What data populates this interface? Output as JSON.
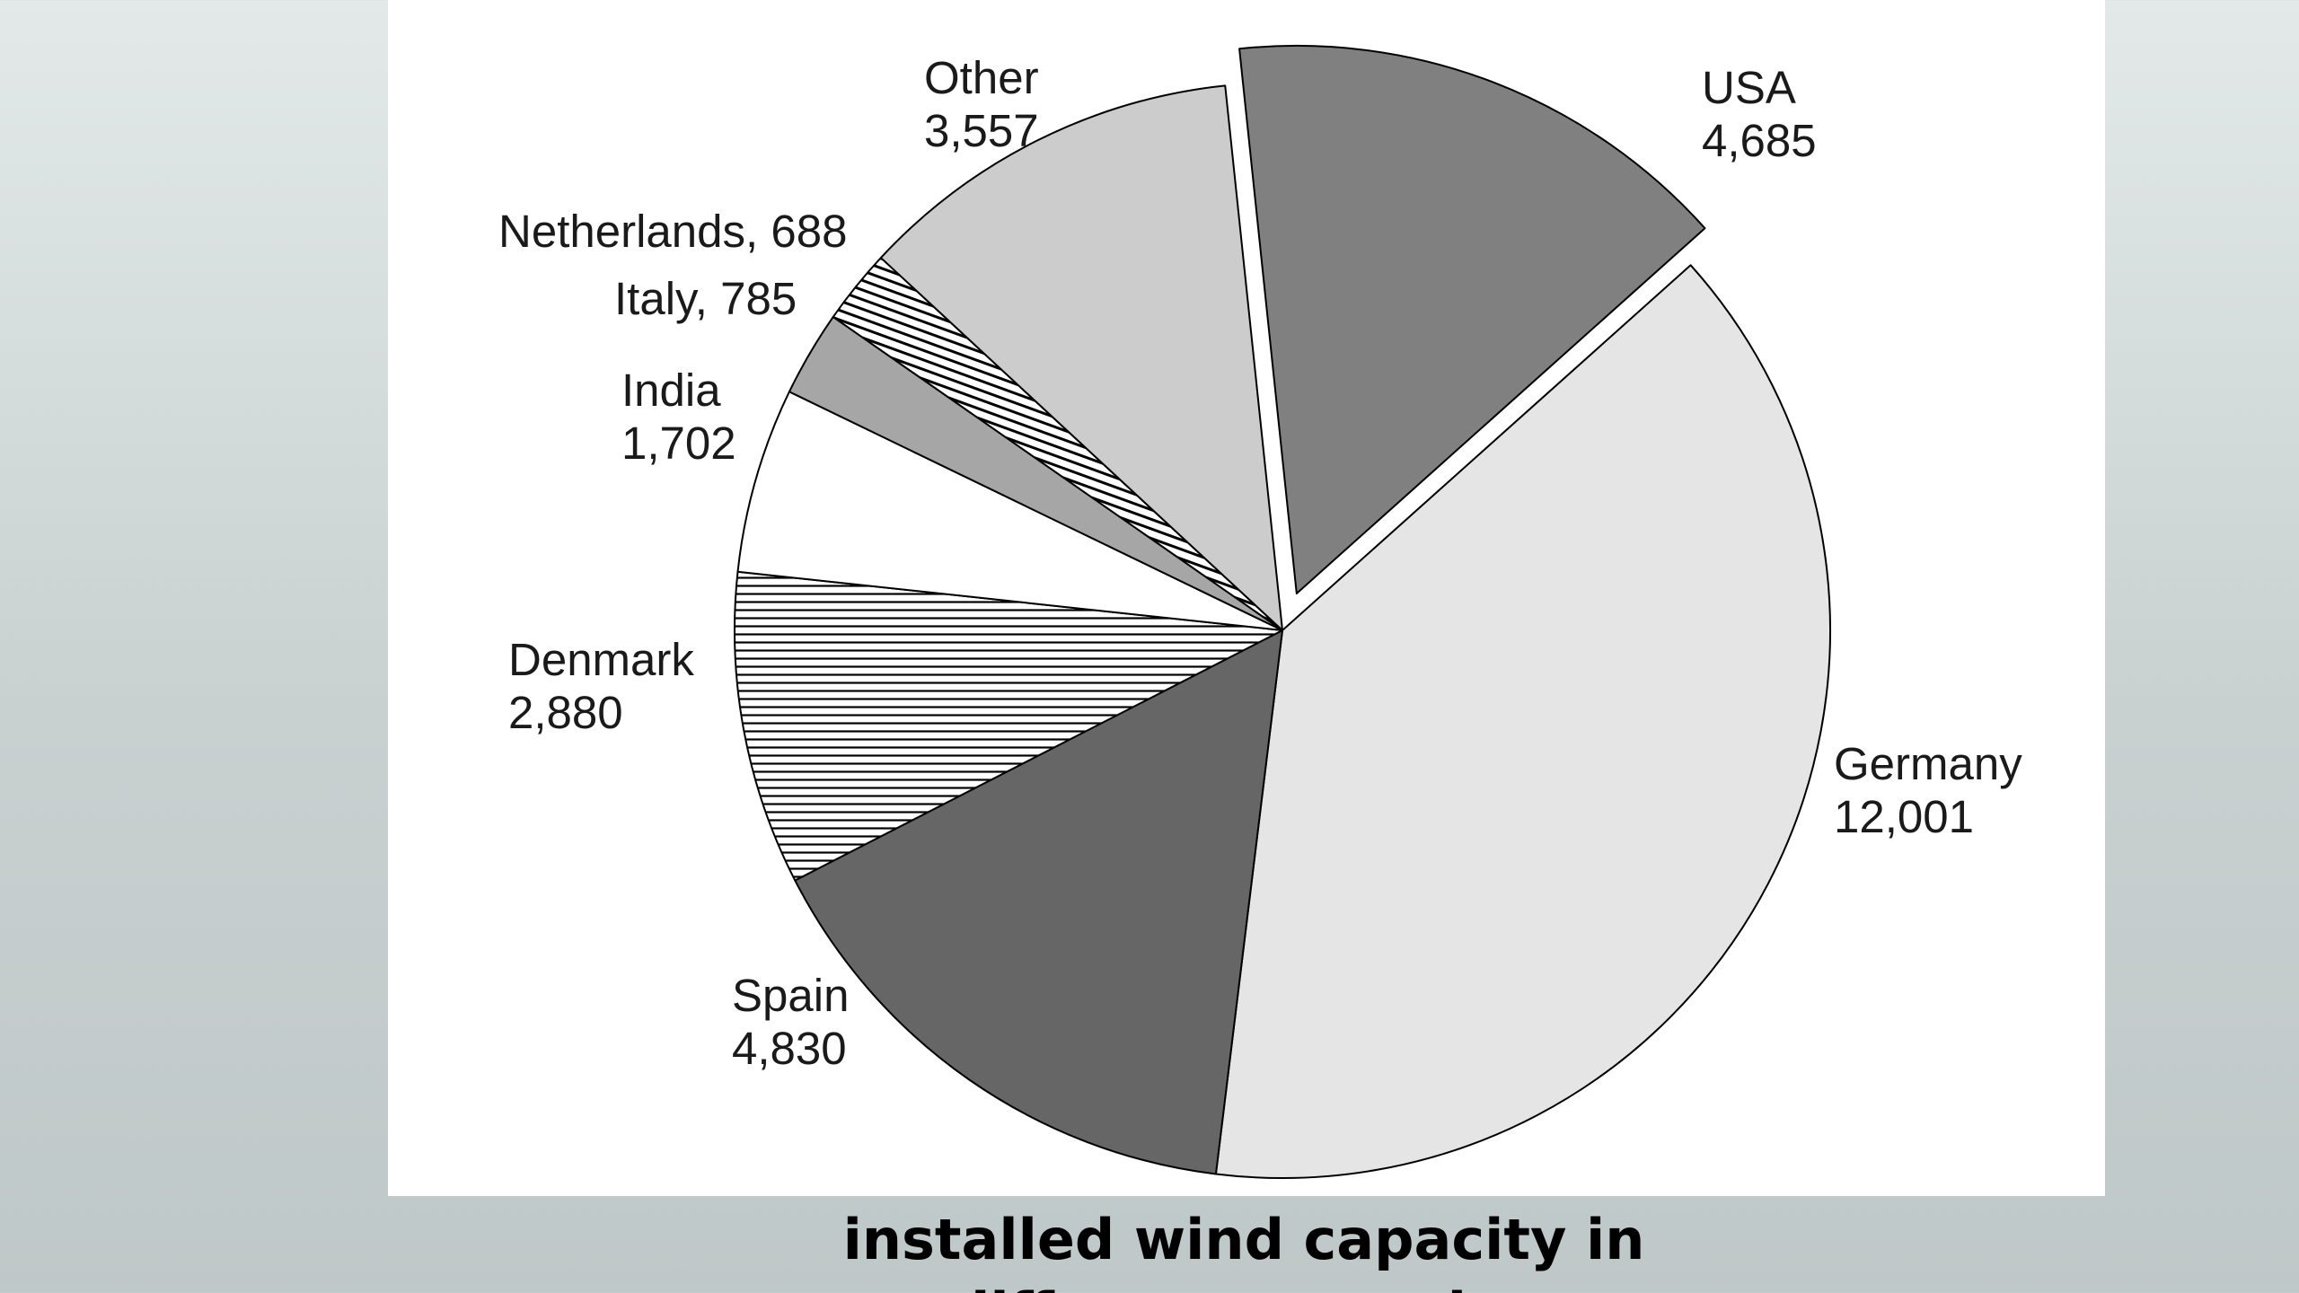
{
  "caption": {
    "line1": "installed wind capacity in",
    "line2": "different countries"
  },
  "chart_data": {
    "type": "pie",
    "title": "",
    "unit": "",
    "start_angle_deg": -6,
    "exploded": "USA",
    "slices": [
      {
        "name": "USA",
        "value": 4685,
        "label_value": "4,685",
        "label_layout": "two-line",
        "color": "#808080",
        "fill": "solid"
      },
      {
        "name": "Germany",
        "value": 12001,
        "label_value": "12,001",
        "label_layout": "two-line",
        "color": "#e5e5e5",
        "fill": "solid"
      },
      {
        "name": "Spain",
        "value": 4830,
        "label_value": "4,830",
        "label_layout": "two-line",
        "color": "#666666",
        "fill": "solid"
      },
      {
        "name": "Denmark",
        "value": 2880,
        "label_value": "2,880",
        "label_layout": "two-line",
        "color": "#ffffff",
        "fill": "horizontal-lines"
      },
      {
        "name": "India",
        "value": 1702,
        "label_value": "1,702",
        "label_layout": "two-line",
        "color": "#ffffff",
        "fill": "solid"
      },
      {
        "name": "Italy",
        "value": 785,
        "label_value": "785",
        "label_layout": "inline",
        "color": "#a6a6a6",
        "fill": "solid"
      },
      {
        "name": "Netherlands",
        "value": 688,
        "label_value": "688",
        "label_layout": "inline",
        "color": "#ffffff",
        "fill": "diagonal-lines"
      },
      {
        "name": "Other",
        "value": 3557,
        "label_value": "3,557",
        "label_layout": "two-line",
        "color": "#cccccc",
        "fill": "solid"
      }
    ]
  }
}
